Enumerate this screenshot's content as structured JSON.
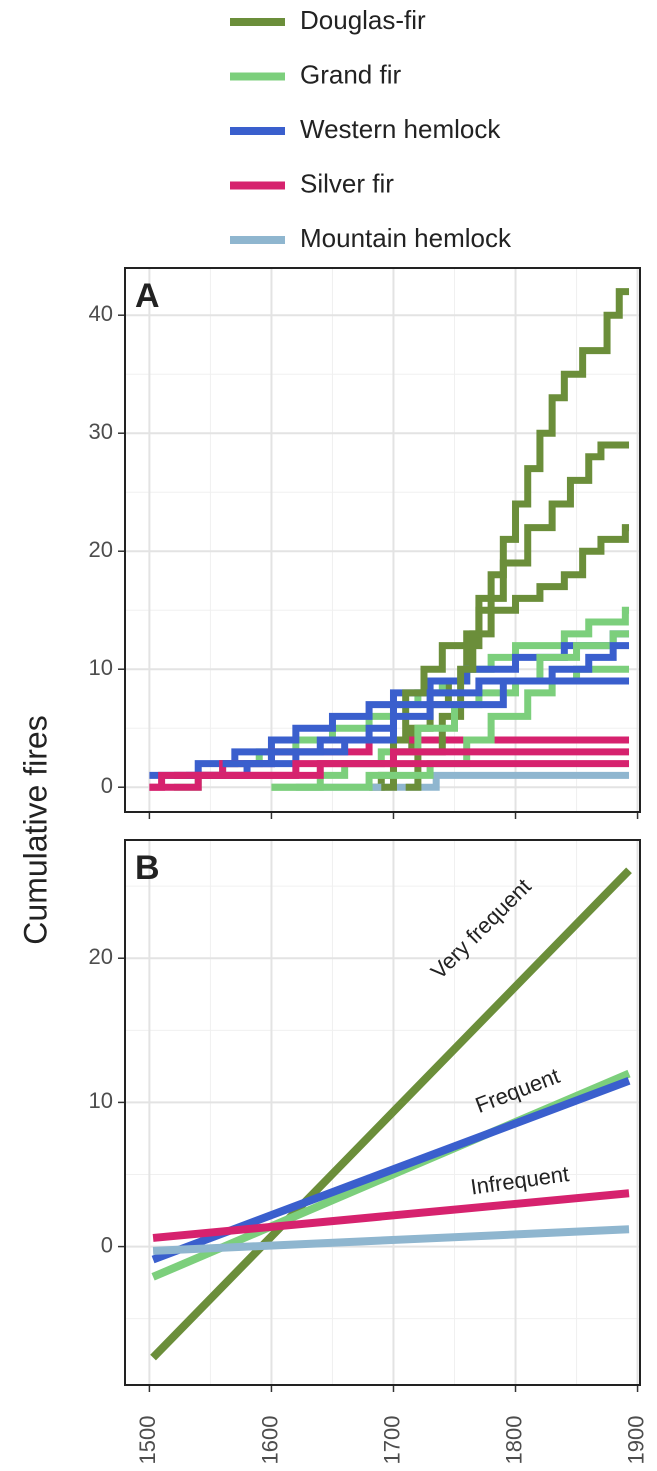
{
  "chart_data": [
    {
      "type": "line",
      "step": true,
      "label": "A",
      "ylabel": "Cumulative fires",
      "xlim": [
        1480,
        1902
      ],
      "xticks": [
        1500,
        1600,
        1700,
        1800,
        1900
      ],
      "ylim": [
        -2.1,
        44
      ],
      "yticks": [
        0,
        10,
        20,
        30,
        40
      ],
      "grid": true,
      "series": [
        {
          "name": "Douglas-fir",
          "color": "#6b8e3a",
          "x": [
            1680,
            1690,
            1700,
            1715,
            1730,
            1745,
            1760,
            1770,
            1780,
            1790,
            1800,
            1810,
            1820,
            1830,
            1840,
            1855,
            1875,
            1885,
            1893
          ],
          "values": [
            0,
            1,
            3,
            5,
            7,
            9,
            12,
            15,
            18,
            21,
            24,
            27,
            30,
            33,
            35,
            37,
            40,
            42,
            42
          ]
        },
        {
          "name": "Grand fir",
          "color": "#7ccf7c",
          "x": [
            1520,
            1540,
            1560,
            1590,
            1620,
            1650,
            1680,
            1700,
            1720,
            1740,
            1760,
            1780,
            1800,
            1840,
            1860,
            1890,
            1893
          ],
          "values": [
            0,
            1,
            2,
            3,
            4,
            5,
            6,
            7,
            8,
            9,
            10,
            11,
            12,
            13,
            14,
            15,
            15
          ]
        },
        {
          "name": "Western hemlock",
          "color": "#3a5fcd",
          "x": [
            1500,
            1540,
            1570,
            1600,
            1620,
            1650,
            1680,
            1700,
            1730,
            1760,
            1800,
            1840,
            1880,
            1893
          ],
          "values": [
            1,
            2,
            3,
            4,
            5,
            6,
            7,
            8,
            9,
            10,
            11,
            12,
            13,
            13
          ]
        },
        {
          "name": "Silver fir",
          "color": "#d6226e",
          "x": [
            1500,
            1510,
            1560,
            1600,
            1680,
            1893
          ],
          "values": [
            0,
            1,
            2,
            3,
            4,
            4
          ]
        },
        {
          "name": "Mountain hemlock",
          "color": "#8fb6cf",
          "x": [
            1620,
            1735,
            1893
          ],
          "values": [
            0,
            1,
            1
          ]
        },
        {
          "name": "Douglas-fir",
          "color": "#6b8e3a",
          "x": [
            1690,
            1700,
            1710,
            1725,
            1740,
            1760,
            1770,
            1790,
            1810,
            1830,
            1845,
            1860,
            1870,
            1893
          ],
          "values": [
            0,
            4,
            8,
            10,
            12,
            13,
            16,
            19,
            22,
            24,
            26,
            28,
            29,
            29
          ]
        },
        {
          "name": "Douglas-fir",
          "color": "#6b8e3a",
          "x": [
            1710,
            1720,
            1740,
            1755,
            1765,
            1780,
            1800,
            1820,
            1840,
            1855,
            1870,
            1890,
            1893
          ],
          "values": [
            0,
            3,
            6,
            10,
            13,
            15,
            16,
            17,
            18,
            20,
            21,
            22,
            22
          ]
        },
        {
          "name": "Grand fir",
          "color": "#7ccf7c",
          "x": [
            1600,
            1640,
            1660,
            1690,
            1720,
            1750,
            1770,
            1800,
            1820,
            1850,
            1880,
            1893
          ],
          "values": [
            0,
            1,
            2,
            3,
            5,
            7,
            8,
            9,
            11,
            12,
            13,
            13
          ]
        },
        {
          "name": "Grand fir",
          "color": "#7ccf7c",
          "x": [
            1600,
            1680,
            1730,
            1760,
            1780,
            1810,
            1830,
            1850,
            1893
          ],
          "values": [
            0,
            1,
            2,
            4,
            6,
            8,
            9,
            10,
            10
          ]
        },
        {
          "name": "Western hemlock",
          "color": "#3a5fcd",
          "x": [
            1530,
            1580,
            1620,
            1660,
            1700,
            1730,
            1790,
            1830,
            1860,
            1880,
            1893
          ],
          "values": [
            1,
            2,
            3,
            4,
            6,
            7,
            9,
            10,
            11,
            12,
            12
          ]
        },
        {
          "name": "Western hemlock",
          "color": "#3a5fcd",
          "x": [
            1560,
            1600,
            1640,
            1680,
            1700,
            1730,
            1770,
            1893
          ],
          "values": [
            2,
            3,
            4,
            5,
            7,
            8,
            9,
            9
          ]
        },
        {
          "name": "Silver fir",
          "color": "#d6226e",
          "x": [
            1500,
            1540,
            1620,
            1700,
            1893
          ],
          "values": [
            0,
            1,
            2,
            3,
            3
          ]
        },
        {
          "name": "Silver fir",
          "color": "#d6226e",
          "x": [
            1520,
            1640,
            1893
          ],
          "values": [
            1,
            2,
            2
          ]
        }
      ]
    },
    {
      "type": "line",
      "step": false,
      "label": "B",
      "xlim": [
        1480,
        1902
      ],
      "xticks": [
        1500,
        1600,
        1700,
        1800,
        1900
      ],
      "ylim": [
        -9.6,
        28.2
      ],
      "yticks": [
        0,
        10,
        20
      ],
      "grid": true,
      "series": [
        {
          "name": "Douglas-fir",
          "color": "#6b8e3a",
          "x": [
            1503,
            1893
          ],
          "values": [
            -7.7,
            26.1
          ]
        },
        {
          "name": "Grand fir",
          "color": "#7ccf7c",
          "x": [
            1503,
            1893
          ],
          "values": [
            -2.1,
            12.0
          ]
        },
        {
          "name": "Western hemlock",
          "color": "#3a5fcd",
          "x": [
            1503,
            1893
          ],
          "values": [
            -0.9,
            11.5
          ]
        },
        {
          "name": "Silver fir",
          "color": "#d6226e",
          "x": [
            1503,
            1893
          ],
          "values": [
            0.6,
            3.7
          ]
        },
        {
          "name": "Mountain hemlock",
          "color": "#8fb6cf",
          "x": [
            1503,
            1893
          ],
          "values": [
            -0.3,
            1.2
          ]
        }
      ],
      "annotations": [
        "Very frequent",
        "Frequent",
        "Infrequent"
      ]
    }
  ]
}
